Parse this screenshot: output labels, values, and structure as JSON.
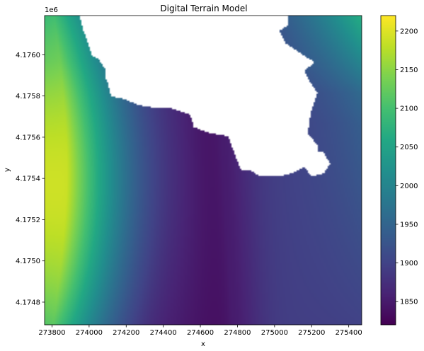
{
  "chart_data": {
    "type": "heatmap",
    "title": "Digital Terrain Model",
    "xlabel": "x",
    "ylabel": "y",
    "y_offset_label": "1e6",
    "xlim": [
      273760,
      275470
    ],
    "ylim": [
      4174690,
      4176190
    ],
    "x_ticks": [
      {
        "value": 273800,
        "label": "273800"
      },
      {
        "value": 274000,
        "label": "274000"
      },
      {
        "value": 274200,
        "label": "274200"
      },
      {
        "value": 274400,
        "label": "274400"
      },
      {
        "value": 274600,
        "label": "274600"
      },
      {
        "value": 274800,
        "label": "274800"
      },
      {
        "value": 275000,
        "label": "275000"
      },
      {
        "value": 275200,
        "label": "275200"
      },
      {
        "value": 275400,
        "label": "275400"
      }
    ],
    "y_ticks": [
      {
        "value": 4174800,
        "label": "4.1748"
      },
      {
        "value": 4175000,
        "label": "4.1750"
      },
      {
        "value": 4175200,
        "label": "4.1752"
      },
      {
        "value": 4175400,
        "label": "4.1754"
      },
      {
        "value": 4175600,
        "label": "4.1756"
      },
      {
        "value": 4175800,
        "label": "4.1758"
      },
      {
        "value": 4176000,
        "label": "4.1760"
      }
    ],
    "colorbar": {
      "colormap": "viridis",
      "range": [
        1820,
        2220
      ],
      "ticks": [
        {
          "value": 1850,
          "label": "1850"
        },
        {
          "value": 1900,
          "label": "1900"
        },
        {
          "value": 1950,
          "label": "1950"
        },
        {
          "value": 2000,
          "label": "2000"
        },
        {
          "value": 2050,
          "label": "2050"
        },
        {
          "value": 2100,
          "label": "2100"
        },
        {
          "value": 2150,
          "label": "2150"
        },
        {
          "value": 2200,
          "label": "2200"
        }
      ]
    },
    "nodata_region": "white area of missing elevation values in the upper middle of the grid",
    "grid": false
  }
}
